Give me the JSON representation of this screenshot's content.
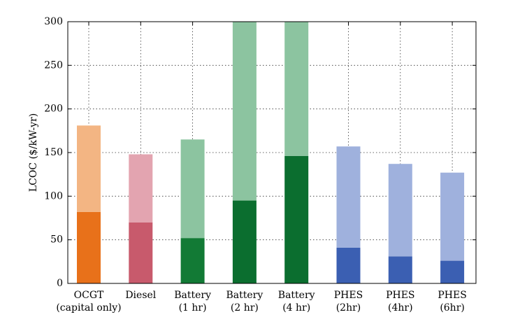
{
  "chart_data": {
    "type": "bar",
    "stacked": true,
    "ylabel": "LCOC ($/kW-yr)",
    "categories": [
      [
        "OCGT",
        "(capital only)"
      ],
      [
        "Diesel"
      ],
      [
        "Battery",
        "(1 hr)"
      ],
      [
        "Battery",
        "(2 hr)"
      ],
      [
        "Battery",
        "(4 hr)"
      ],
      [
        "PHES",
        "(2hr)"
      ],
      [
        "PHES",
        "(4hr)"
      ],
      [
        "PHES",
        "(6hr)"
      ]
    ],
    "series": [
      {
        "colors": [
          "#e8711a",
          "#c85a6c",
          "#127a35",
          "#0b6e2f",
          "#0b6e2f",
          "#3b5fb2",
          "#3b5fb2",
          "#3b5fb2"
        ],
        "values": [
          82,
          70,
          52,
          95,
          146,
          41,
          31,
          26
        ]
      },
      {
        "colors": [
          "#f3b583",
          "#e3a4b0",
          "#8cc4a0",
          "#8cc4a0",
          "#8cc4a0",
          "#9fb1dd",
          "#9fb1dd",
          "#9fb1dd"
        ],
        "values": [
          99,
          78,
          113,
          205,
          154,
          116,
          106,
          101
        ]
      }
    ],
    "ylim": [
      0,
      300
    ],
    "yticks": [
      0,
      50,
      100,
      150,
      200,
      250,
      300
    ],
    "grid": true
  }
}
